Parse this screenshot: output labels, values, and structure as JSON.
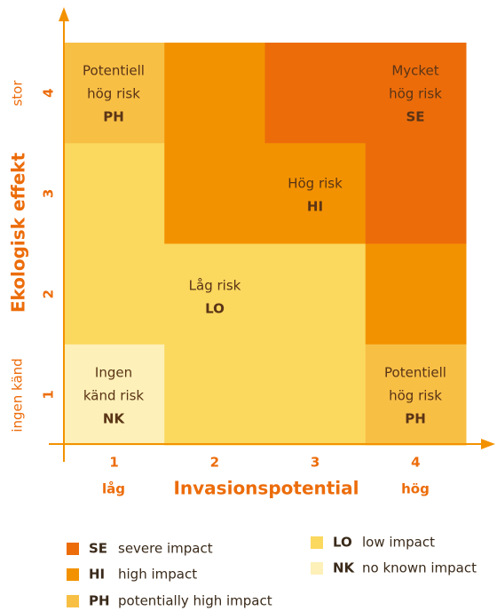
{
  "axes": {
    "x": {
      "title": "Invasionspotential",
      "ticks": [
        "1",
        "2",
        "3",
        "4"
      ],
      "low": "låg",
      "high": "hög"
    },
    "y": {
      "title": "Ekologisk effekt",
      "ticks": [
        "1",
        "2",
        "3",
        "4"
      ],
      "low": "ingen känd",
      "high": "stor"
    }
  },
  "grid": [
    [
      "PH",
      "HI",
      "SE",
      "SE"
    ],
    [
      "LO",
      "HI",
      "HI",
      "SE"
    ],
    [
      "LO",
      "LO",
      "LO",
      "HI"
    ],
    [
      "NK",
      "LO",
      "LO",
      "PH"
    ]
  ],
  "regions": [
    {
      "lines": [
        "Potentiell",
        "hög risk"
      ],
      "code": "PH"
    },
    {
      "lines": [
        "Mycket",
        "hög risk"
      ],
      "code": "SE"
    },
    {
      "lines": [
        "Hög risk"
      ],
      "code": "HI"
    },
    {
      "lines": [
        "Låg risk"
      ],
      "code": "LO"
    },
    {
      "lines": [
        "Ingen",
        "känd risk"
      ],
      "code": "NK"
    },
    {
      "lines": [
        "Potentiell",
        "hög risk"
      ],
      "code": "PH"
    }
  ],
  "legend": [
    {
      "code": "SE",
      "description": "severe impact",
      "color": "#ec6c0a"
    },
    {
      "code": "HI",
      "description": "high impact",
      "color": "#f39200"
    },
    {
      "code": "PH",
      "description": "potentially high impact",
      "color": "#f8bf45"
    },
    {
      "code": "LO",
      "description": "low impact",
      "color": "#fbd85e"
    },
    {
      "code": "NK",
      "description": "no known impact",
      "color": "#fdf0b8"
    }
  ]
}
